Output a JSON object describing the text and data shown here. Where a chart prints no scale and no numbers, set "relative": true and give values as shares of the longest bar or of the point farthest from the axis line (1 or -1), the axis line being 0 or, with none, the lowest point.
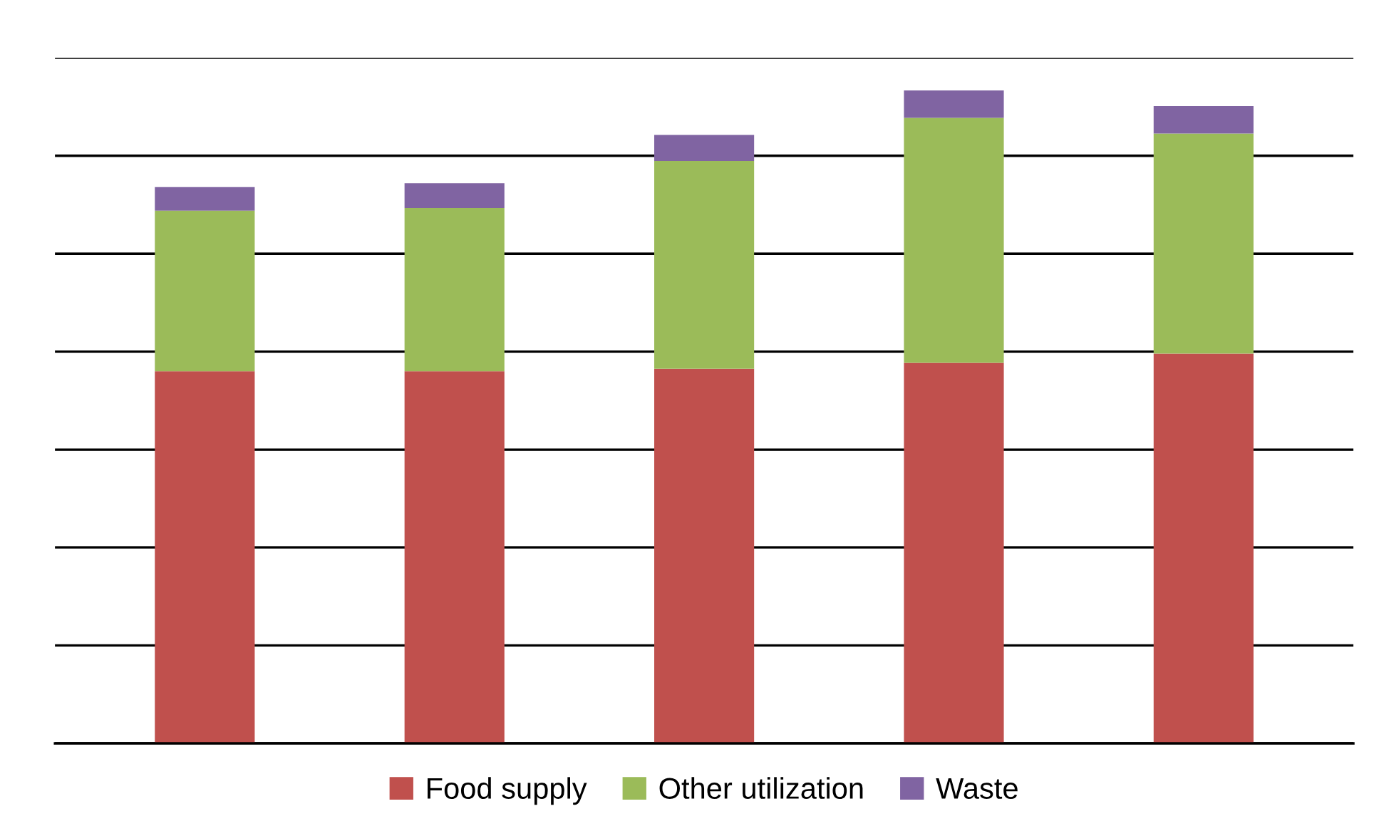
{
  "chart_data": {
    "type": "bar",
    "stacked": true,
    "relative": true,
    "grid": "y",
    "legend": "bottom",
    "categories": [
      null,
      null,
      null,
      null,
      null
    ],
    "series": [
      {
        "name": "Food supply",
        "color": "#c0504d",
        "values": [
          0.57,
          0.57,
          0.574,
          0.583,
          0.597
        ]
      },
      {
        "name": "Other utilization",
        "color": "#9bbb59",
        "values": [
          0.246,
          0.25,
          0.318,
          0.375,
          0.337
        ]
      },
      {
        "name": "Waste",
        "color": "#8064a2",
        "values": [
          0.036,
          0.038,
          0.04,
          0.042,
          0.042
        ]
      }
    ]
  }
}
